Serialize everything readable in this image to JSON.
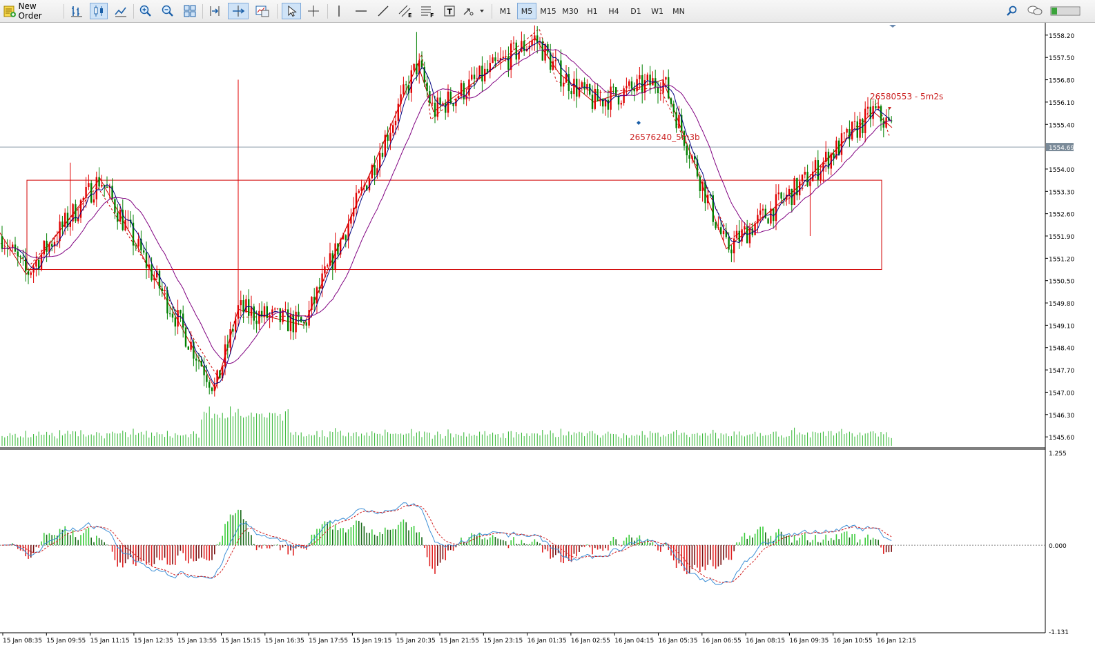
{
  "toolbar": {
    "new_order_label": "New Order",
    "timeframes": [
      "M1",
      "M5",
      "M15",
      "M30",
      "H1",
      "H4",
      "D1",
      "W1",
      "MN"
    ],
    "active_timeframe": "M5",
    "icons": [
      "bar-chart-icon",
      "candlestick-icon",
      "line-chart-icon",
      "zoom-in-icon",
      "zoom-out-icon",
      "tile-windows-icon",
      "chart-shift-icon",
      "autoscroll-icon",
      "templates-icon",
      "cursor-icon",
      "crosshair-icon",
      "vertical-line-icon",
      "horizontal-line-icon",
      "trendline-icon",
      "equidistant-channel-icon",
      "fibonacci-icon",
      "text-icon",
      "arrows-icon",
      "search-icon",
      "chat-icon",
      "signal-icon"
    ]
  },
  "chart": {
    "symbol_price_scale": [
      "1558.20",
      "1557.50",
      "1556.80",
      "1556.10",
      "1555.40",
      "1554.69",
      "1554.00",
      "1553.30",
      "1552.60",
      "1551.90",
      "1551.20",
      "1550.50",
      "1549.80",
      "1549.10",
      "1548.40",
      "1547.70",
      "1547.00",
      "1546.30",
      "1545.60"
    ],
    "current_price": "1554.69",
    "annotations": {
      "label1": "26576240_5m3b",
      "label2": "26580553 - 5m2s"
    },
    "indicator_scale": [
      "1.255",
      "0.000",
      "-1.131"
    ],
    "time_labels": [
      "15 Jan 08:35",
      "15 Jan 09:55",
      "15 Jan 11:15",
      "15 Jan 12:35",
      "15 Jan 13:55",
      "15 Jan 15:15",
      "15 Jan 16:35",
      "15 Jan 17:55",
      "15 Jan 19:15",
      "15 Jan 20:35",
      "15 Jan 21:55",
      "15 Jan 23:15",
      "16 Jan 01:35",
      "16 Jan 02:55",
      "16 Jan 04:15",
      "16 Jan 05:35",
      "16 Jan 06:55",
      "16 Jan 08:15",
      "16 Jan 09:35",
      "16 Jan 10:55",
      "16 Jan 12:15"
    ],
    "colors": {
      "bull": "#e00000",
      "bear": "#008000",
      "ma_fast": "#000080",
      "ma_slow": "#800080",
      "zigzag": "#cc0000",
      "box": "#d00000",
      "volume": "#2fb52f",
      "macd_line": "#3b8ed6",
      "signal_line": "#d22020"
    }
  },
  "chart_data": {
    "type": "candlestick",
    "price_range": [
      1545.3,
      1558.5
    ],
    "zigzag_points": [
      [
        0,
        1552.0
      ],
      [
        38,
        1550.7
      ],
      [
        145,
        1553.7
      ],
      [
        312,
        1547.1
      ],
      [
        345,
        1549.6
      ],
      [
        440,
        1549.1
      ],
      [
        470,
        1550.6
      ],
      [
        605,
        1557.3
      ],
      [
        628,
        1555.8
      ],
      [
        775,
        1558.1
      ],
      [
        810,
        1557.0
      ],
      [
        860,
        1556.1
      ],
      [
        960,
        1556.8
      ],
      [
        1052,
        1551.5
      ],
      [
        1165,
        1553.6
      ],
      [
        1265,
        1555.8
      ],
      [
        1292,
        1555.3
      ]
    ],
    "box": {
      "price_top": 1553.65,
      "price_bottom": 1550.85
    },
    "macd_range": [
      -1.131,
      1.255
    ]
  }
}
